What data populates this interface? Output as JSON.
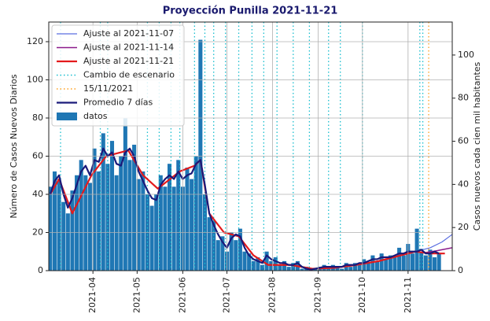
{
  "chart_data": {
    "type": "bar-line",
    "title": "Proyección Punilla 2021-11-21",
    "ylabel": "Número de Casos Nuevos Diarios",
    "y2label": "Casos nuevos cada cien mil habitantes",
    "xlim": [
      1,
      275
    ],
    "xticks": [
      {
        "value": 31,
        "label": "2021-04"
      },
      {
        "value": 61,
        "label": "2021-05"
      },
      {
        "value": 92,
        "label": "2021-06"
      },
      {
        "value": 122,
        "label": "2021-07"
      },
      {
        "value": 153,
        "label": "2021-08"
      },
      {
        "value": 184,
        "label": "2021-09"
      },
      {
        "value": 214,
        "label": "2021-10"
      },
      {
        "value": 245,
        "label": "2021-11"
      }
    ],
    "ylim": [
      0,
      130.3
    ],
    "yticks": [
      0,
      20,
      40,
      60,
      80,
      100,
      120
    ],
    "y2lim": [
      0,
      115.3
    ],
    "y2ticks": [
      0,
      20,
      40,
      60,
      80,
      100
    ],
    "grid": true,
    "legend": "upper left",
    "bars": {
      "name": "datos",
      "color": "#1f77b4",
      "x": [
        2,
        5,
        8,
        11,
        14,
        17,
        20,
        23,
        26,
        29,
        32,
        35,
        38,
        41,
        44,
        47,
        50,
        53,
        56,
        59,
        62,
        65,
        68,
        71,
        74,
        77,
        80,
        83,
        86,
        89,
        92,
        95,
        98,
        101,
        104,
        107,
        110,
        113,
        116,
        119,
        122,
        125,
        128,
        131,
        134,
        137,
        140,
        143,
        146,
        149,
        152,
        155,
        158,
        161,
        164,
        167,
        170,
        173,
        176,
        179,
        182,
        185,
        188,
        191,
        194,
        197,
        200,
        203,
        206,
        209,
        212,
        215,
        218,
        221,
        224,
        227,
        230,
        233,
        236,
        239,
        242,
        245,
        248,
        251,
        254,
        257,
        260,
        263,
        266
      ],
      "values": [
        44,
        52,
        48,
        36,
        30,
        42,
        50,
        58,
        50,
        46,
        64,
        52,
        72,
        56,
        68,
        50,
        60,
        80,
        58,
        66,
        48,
        52,
        40,
        34,
        40,
        50,
        44,
        56,
        44,
        58,
        44,
        54,
        48,
        60,
        121,
        40,
        28,
        26,
        16,
        18,
        10,
        20,
        16,
        22,
        10,
        9,
        5,
        7,
        3,
        10,
        5,
        7,
        3,
        5,
        2,
        4,
        5,
        1,
        2,
        0,
        1,
        2,
        3,
        1,
        3,
        2,
        1,
        4,
        2,
        4,
        3,
        6,
        4,
        8,
        5,
        9,
        6,
        8,
        7,
        12,
        8,
        14,
        9,
        22,
        10,
        8,
        11,
        7,
        9
      ]
    },
    "series": [
      {
        "name": "Ajuste al 2021-11-07",
        "color": "#5b6ee1",
        "width": 1.2,
        "x": [
          240,
          250,
          260,
          268,
          275
        ],
        "values": [
          8,
          10,
          12,
          15,
          19
        ]
      },
      {
        "name": "Ajuste al 2021-11-14",
        "color": "#8b1a8b",
        "width": 1.5,
        "x": [
          250,
          257,
          265,
          275
        ],
        "values": [
          10,
          9.5,
          10.5,
          12
        ]
      },
      {
        "name": "Ajuste al 2021-11-21",
        "color": "#e31a1c",
        "width": 2.2,
        "x": [
          2,
          8,
          17,
          30,
          40,
          55,
          65,
          75,
          90,
          100,
          104,
          110,
          120,
          130,
          140,
          150,
          165,
          180,
          195,
          210,
          225,
          240,
          250,
          260,
          270
        ],
        "values": [
          40,
          48,
          30,
          50,
          60,
          63,
          50,
          43,
          52,
          55,
          58,
          30,
          20,
          18,
          8,
          3,
          3,
          1,
          1.5,
          3,
          5,
          8,
          10,
          9,
          9
        ]
      },
      {
        "name": "Promedio 7 días",
        "color": "#1a1a7a",
        "width": 2.2,
        "x": [
          2,
          5,
          8,
          11,
          14,
          17,
          20,
          23,
          26,
          29,
          32,
          35,
          38,
          41,
          44,
          47,
          50,
          53,
          56,
          59,
          62,
          65,
          68,
          71,
          74,
          77,
          80,
          83,
          86,
          89,
          92,
          95,
          98,
          101,
          104,
          107,
          110,
          113,
          116,
          119,
          122,
          125,
          128,
          131,
          134,
          137,
          140,
          143,
          146,
          149,
          152,
          155,
          158,
          161,
          164,
          167,
          170,
          173,
          176,
          179,
          182,
          185,
          188,
          191,
          194,
          197,
          200,
          203,
          206,
          209,
          212,
          215,
          218,
          221,
          224,
          227,
          230,
          233,
          236,
          239,
          242,
          245,
          248,
          251,
          254,
          257,
          260,
          263,
          266
        ],
        "values": [
          40,
          47,
          50,
          40,
          33,
          38,
          45,
          52,
          55,
          50,
          58,
          57,
          64,
          60,
          62,
          56,
          55,
          62,
          64,
          60,
          52,
          47,
          42,
          38,
          37,
          45,
          48,
          50,
          48,
          52,
          48,
          50,
          51,
          56,
          58,
          45,
          30,
          24,
          19,
          15,
          12,
          17,
          19,
          18,
          12,
          8,
          6,
          5,
          4,
          8,
          6,
          5,
          4,
          4,
          3,
          3,
          4,
          2,
          1,
          0.5,
          1,
          1.5,
          2,
          2,
          2,
          2,
          2,
          3,
          3,
          3,
          4,
          4,
          5,
          6,
          6,
          7,
          7,
          7,
          8,
          9,
          9,
          10,
          10,
          10,
          11,
          9,
          9,
          10,
          9
        ]
      }
    ],
    "vlines": {
      "name": "Cambio de escenario",
      "color": "#17becf",
      "x": [
        9,
        36,
        41,
        68,
        76,
        84,
        90,
        100,
        107,
        113,
        121,
        130,
        139,
        147,
        156,
        167,
        178,
        191,
        199,
        214,
        253,
        255
      ]
    },
    "marker": {
      "name": "15/11/2021",
      "color": "#ff9f1c",
      "x": 259
    }
  }
}
